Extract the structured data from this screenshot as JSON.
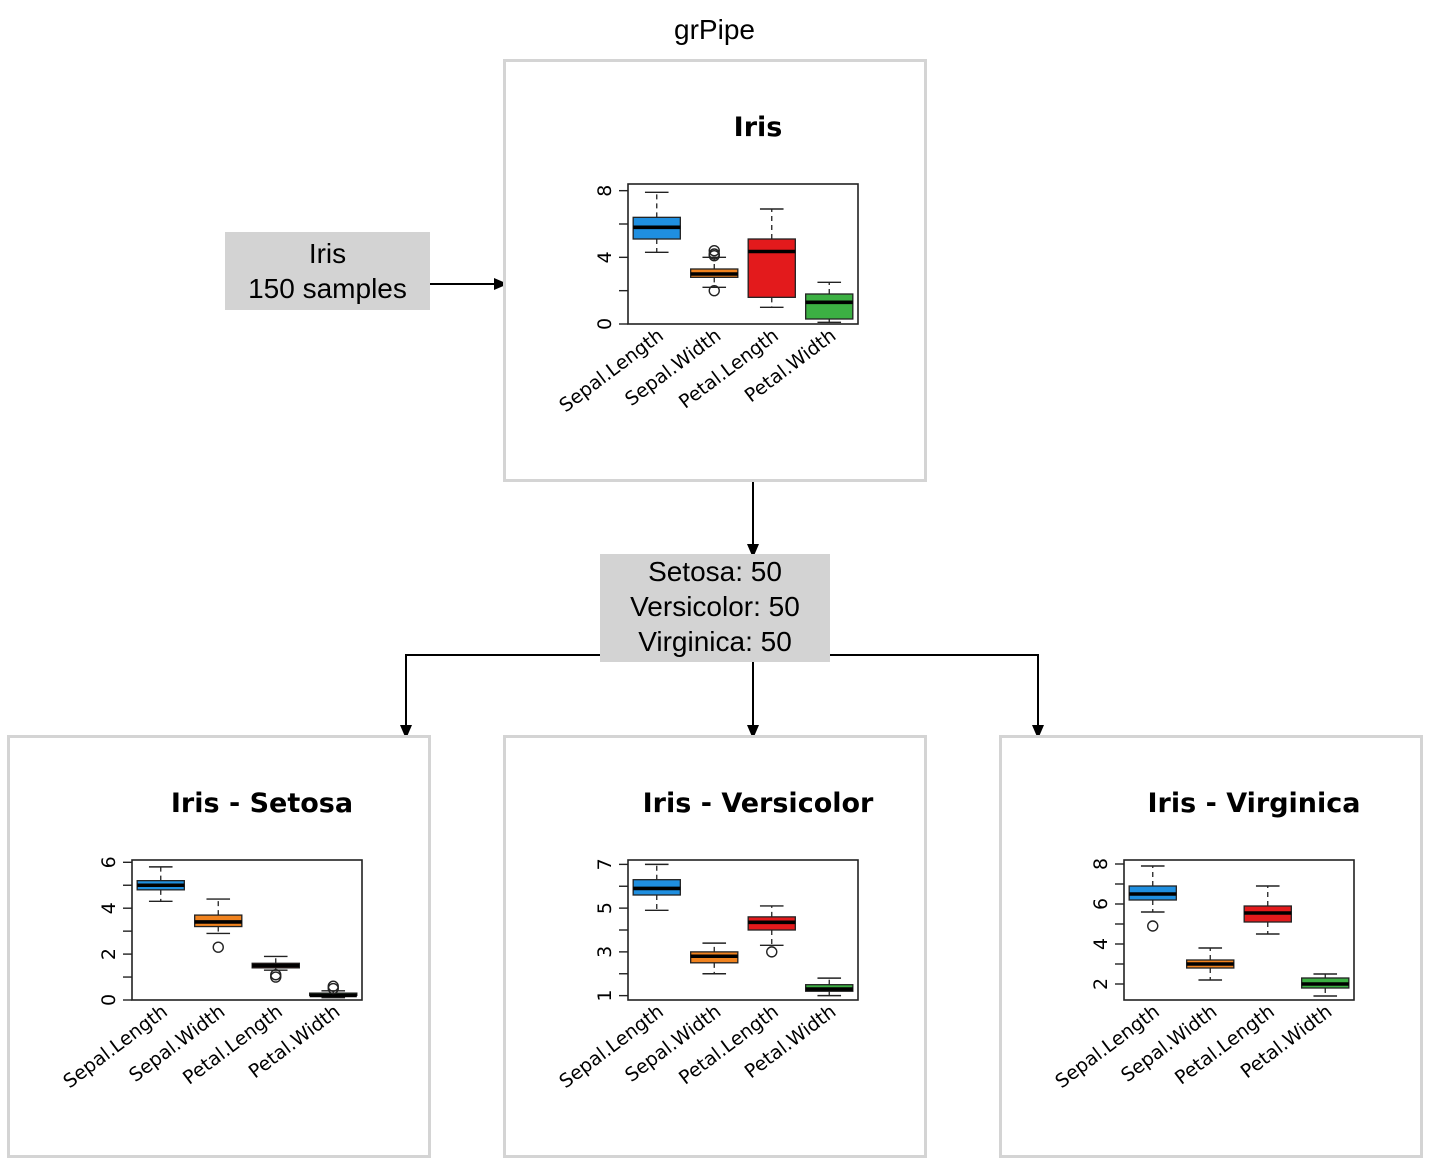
{
  "diagram": {
    "title": "grPipe",
    "input_label": {
      "line1": "Iris",
      "line2": "150 samples"
    },
    "split_label": {
      "line1": "Setosa: 50",
      "line2": "Versicolor: 50",
      "line3": "Virginica: 50"
    }
  },
  "chart_data": [
    {
      "type": "boxplot",
      "title": "Iris",
      "categories": [
        "Sepal.Length",
        "Sepal.Width",
        "Petal.Length",
        "Petal.Width"
      ],
      "colors": [
        "#1f8fe0",
        "#f0821e",
        "#e31a1c",
        "#3cb043"
      ],
      "ylim": [
        0,
        8.4
      ],
      "yticks": [
        0,
        2,
        4,
        6,
        8
      ],
      "ytick_labels": [
        "0",
        "",
        "4",
        "",
        "8"
      ],
      "boxes": [
        {
          "min": 4.3,
          "q1": 5.1,
          "median": 5.8,
          "q3": 6.4,
          "max": 7.9,
          "outliers": []
        },
        {
          "min": 2.2,
          "q1": 2.8,
          "median": 3.0,
          "q3": 3.3,
          "max": 4.0,
          "outliers": [
            4.1,
            4.2,
            4.4,
            2.0
          ]
        },
        {
          "min": 1.0,
          "q1": 1.6,
          "median": 4.35,
          "q3": 5.1,
          "max": 6.9,
          "outliers": []
        },
        {
          "min": 0.1,
          "q1": 0.3,
          "median": 1.3,
          "q3": 1.8,
          "max": 2.5,
          "outliers": []
        }
      ]
    },
    {
      "type": "boxplot",
      "title": "Iris - Setosa",
      "categories": [
        "Sepal.Length",
        "Sepal.Width",
        "Petal.Length",
        "Petal.Width"
      ],
      "colors": [
        "#1f8fe0",
        "#f0821e",
        "#e31a1c",
        "#3cb043"
      ],
      "ylim": [
        0,
        6.1
      ],
      "yticks": [
        0,
        1,
        2,
        3,
        4,
        5,
        6
      ],
      "ytick_labels": [
        "0",
        "",
        "2",
        "",
        "4",
        "",
        "6"
      ],
      "boxes": [
        {
          "min": 4.3,
          "q1": 4.8,
          "median": 5.0,
          "q3": 5.2,
          "max": 5.8,
          "outliers": []
        },
        {
          "min": 2.9,
          "q1": 3.2,
          "median": 3.4,
          "q3": 3.7,
          "max": 4.4,
          "outliers": [
            2.3
          ]
        },
        {
          "min": 1.3,
          "q1": 1.4,
          "median": 1.5,
          "q3": 1.6,
          "max": 1.9,
          "outliers": [
            1.0,
            1.1
          ]
        },
        {
          "min": 0.1,
          "q1": 0.2,
          "median": 0.2,
          "q3": 0.3,
          "max": 0.4,
          "outliers": [
            0.5,
            0.6
          ]
        }
      ]
    },
    {
      "type": "boxplot",
      "title": "Iris - Versicolor",
      "categories": [
        "Sepal.Length",
        "Sepal.Width",
        "Petal.Length",
        "Petal.Width"
      ],
      "colors": [
        "#1f8fe0",
        "#f0821e",
        "#e31a1c",
        "#3cb043"
      ],
      "ylim": [
        0.8,
        7.2
      ],
      "yticks": [
        1,
        2,
        3,
        4,
        5,
        6,
        7
      ],
      "ytick_labels": [
        "1",
        "",
        "3",
        "",
        "5",
        "",
        "7"
      ],
      "boxes": [
        {
          "min": 4.9,
          "q1": 5.6,
          "median": 5.9,
          "q3": 6.3,
          "max": 7.0,
          "outliers": []
        },
        {
          "min": 2.0,
          "q1": 2.5,
          "median": 2.8,
          "q3": 3.0,
          "max": 3.4,
          "outliers": []
        },
        {
          "min": 3.3,
          "q1": 4.0,
          "median": 4.35,
          "q3": 4.6,
          "max": 5.1,
          "outliers": [
            3.0
          ]
        },
        {
          "min": 1.0,
          "q1": 1.2,
          "median": 1.3,
          "q3": 1.5,
          "max": 1.8,
          "outliers": []
        }
      ]
    },
    {
      "type": "boxplot",
      "title": "Iris - Virginica",
      "categories": [
        "Sepal.Length",
        "Sepal.Width",
        "Petal.Length",
        "Petal.Width"
      ],
      "colors": [
        "#1f8fe0",
        "#f0821e",
        "#e31a1c",
        "#3cb043"
      ],
      "ylim": [
        1.2,
        8.2
      ],
      "yticks": [
        2,
        3,
        4,
        5,
        6,
        7,
        8
      ],
      "ytick_labels": [
        "2",
        "",
        "4",
        "",
        "6",
        "",
        "8"
      ],
      "boxes": [
        {
          "min": 5.6,
          "q1": 6.2,
          "median": 6.5,
          "q3": 6.9,
          "max": 7.9,
          "outliers": [
            4.9
          ]
        },
        {
          "min": 2.2,
          "q1": 2.8,
          "median": 3.0,
          "q3": 3.2,
          "max": 3.8,
          "outliers": []
        },
        {
          "min": 4.5,
          "q1": 5.1,
          "median": 5.55,
          "q3": 5.9,
          "max": 6.9,
          "outliers": []
        },
        {
          "min": 1.4,
          "q1": 1.8,
          "median": 2.0,
          "q3": 2.3,
          "max": 2.5,
          "outliers": []
        }
      ]
    }
  ]
}
